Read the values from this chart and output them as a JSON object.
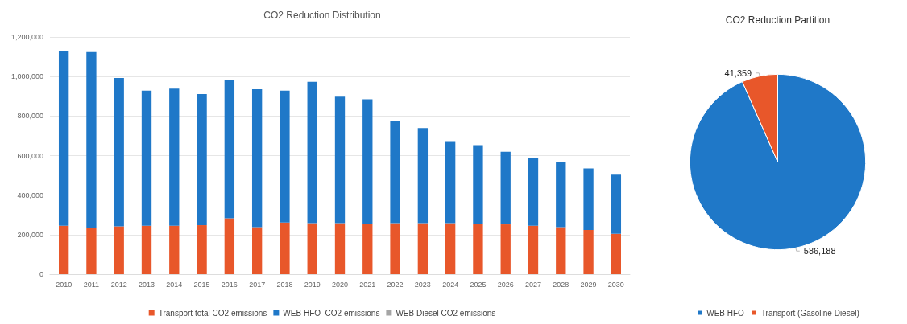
{
  "chart_data": [
    {
      "type": "bar",
      "title": "CO2 Reduction Distribution",
      "stacked": true,
      "categories": [
        "2010",
        "2011",
        "2012",
        "2013",
        "2014",
        "2015",
        "2016",
        "2017",
        "2018",
        "2019",
        "2020",
        "2021",
        "2022",
        "2023",
        "2024",
        "2025",
        "2026",
        "2027",
        "2028",
        "2029",
        "2030"
      ],
      "series": [
        {
          "name": "Transport total CO2 emissions",
          "color": "#e8572a",
          "values": [
            245000,
            236000,
            242000,
            245000,
            245000,
            248000,
            283000,
            238000,
            261000,
            258000,
            258000,
            256000,
            258000,
            258000,
            258000,
            256000,
            252000,
            245000,
            238000,
            224000,
            204000
          ]
        },
        {
          "name": "WEB HFO  CO2 emissions",
          "color": "#1f78c8",
          "values": [
            885000,
            888000,
            751000,
            683000,
            694000,
            663000,
            699000,
            698000,
            667000,
            715000,
            640000,
            629000,
            515000,
            481000,
            411000,
            397000,
            367000,
            343000,
            327000,
            311000,
            299000
          ]
        },
        {
          "name": "WEB Diesel CO2 emissions",
          "color": "#a5a5a5",
          "values": [
            0,
            0,
            0,
            0,
            0,
            0,
            0,
            0,
            0,
            0,
            0,
            0,
            0,
            0,
            0,
            0,
            0,
            0,
            0,
            0,
            0
          ]
        }
      ],
      "ylim": [
        0,
        1200000
      ],
      "yticks": [
        0,
        {
          "value": 200000,
          "label": "200,000"
        },
        {
          "value": 400000,
          "label": "400,000"
        },
        {
          "value": 600000,
          "label": "600,000"
        },
        {
          "value": 800000,
          "label": "800,000"
        },
        {
          "value": 1000000,
          "label": "1,000,000"
        },
        {
          "value": 1200000,
          "label": "1,200,000"
        }
      ],
      "grid": "y",
      "legend": "bottom"
    },
    {
      "type": "pie",
      "title": "CO2 Reduction Partition",
      "categories": [
        "WEB HFO",
        "Transport (Gasoline Diesel)"
      ],
      "values": [
        586188,
        41359
      ],
      "value_labels": [
        "586,188",
        "41,359"
      ],
      "colors": [
        "#1f78c8",
        "#e8572a"
      ],
      "legend": "bottom"
    }
  ]
}
